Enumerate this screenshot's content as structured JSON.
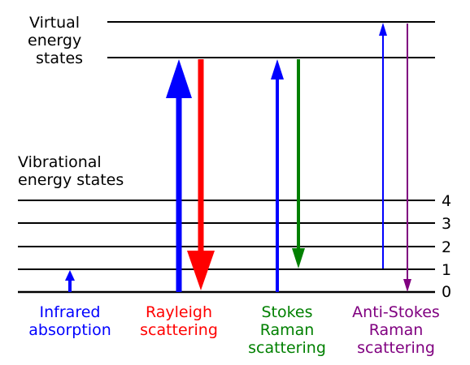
{
  "labels": {
    "virtual": [
      "Virtual",
      "energy",
      "states"
    ],
    "vibrational": [
      "Vibrational",
      "energy states"
    ]
  },
  "levels": [
    "4",
    "3",
    "2",
    "1",
    "0"
  ],
  "processes": [
    {
      "name": [
        "Infrared",
        "absorption"
      ],
      "color": "#0000ff"
    },
    {
      "name": [
        "Rayleigh",
        "scattering"
      ],
      "color": "#ff0000"
    },
    {
      "name": [
        "Stokes",
        "Raman",
        "scattering"
      ],
      "color": "#008000"
    },
    {
      "name": [
        "Anti-Stokes",
        "Raman",
        "scattering"
      ],
      "color": "#800080"
    }
  ],
  "colors": {
    "line": "#000000",
    "blue": "#0000ff",
    "red": "#ff0000",
    "green": "#008000",
    "purple": "#800080"
  }
}
